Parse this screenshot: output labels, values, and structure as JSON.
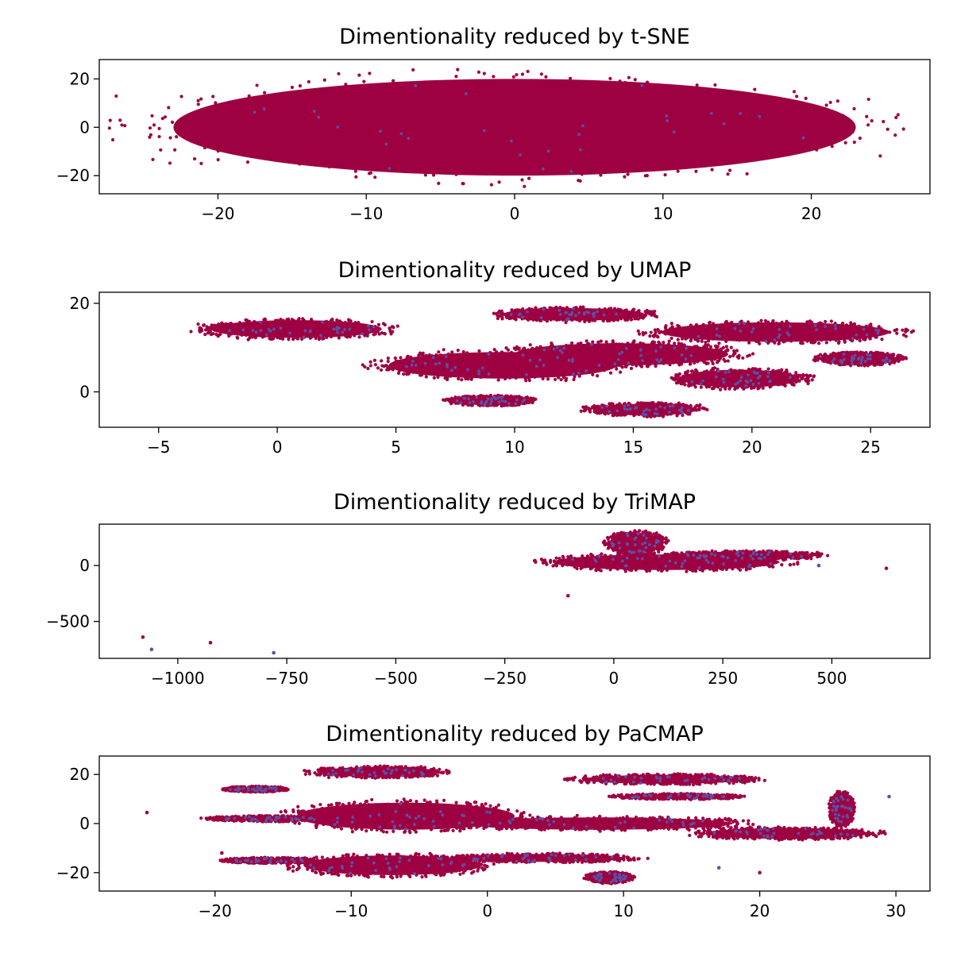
{
  "chart_data": [
    {
      "type": "scatter",
      "title": "Dimentionality reduced by t-SNE",
      "xlabel": "",
      "ylabel": "",
      "xlim": [
        -28,
        28
      ],
      "ylim": [
        -27.5,
        28
      ],
      "xticks": [
        -20,
        -10,
        0,
        10,
        20
      ],
      "yticks": [
        -20,
        0,
        20
      ],
      "xtick_labels": [
        "−20",
        "−10",
        "0",
        "10",
        "20"
      ],
      "ytick_labels": [
        "−20",
        "0",
        "20"
      ],
      "grid": false,
      "colors": {
        "dominant": "#9e0142",
        "minority": "#5e4fa2"
      },
      "shape": {
        "kind": "ellipse",
        "cx": 0,
        "cy": 0,
        "rx": 23,
        "ry": 20
      },
      "seed": 11
    },
    {
      "type": "scatter",
      "title": "Dimentionality reduced by UMAP",
      "xlabel": "",
      "ylabel": "",
      "xlim": [
        -7.5,
        27.5
      ],
      "ylim": [
        -8,
        22.5
      ],
      "xticks": [
        -5,
        0,
        5,
        10,
        15,
        20,
        25
      ],
      "yticks": [
        0,
        20
      ],
      "xtick_labels": [
        "−5",
        "0",
        "5",
        "10",
        "15",
        "20",
        "25"
      ],
      "ytick_labels": [
        "0",
        "20"
      ],
      "grid": false,
      "colors": {
        "dominant": "#9e0142",
        "minority": "#5e4fa2"
      },
      "clusters": [
        {
          "cx": 0.8,
          "cy": 14.2,
          "rx": 3.6,
          "ry": 2.0
        },
        {
          "cx": 9.5,
          "cy": 6.0,
          "rx": 4.8,
          "ry": 3.0
        },
        {
          "cx": 14.5,
          "cy": 8.5,
          "rx": 4.5,
          "ry": 2.5
        },
        {
          "cx": 15.5,
          "cy": -4.0,
          "rx": 2.2,
          "ry": 1.3
        },
        {
          "cx": 21.0,
          "cy": 13.5,
          "rx": 4.8,
          "ry": 2.2
        },
        {
          "cx": 24.5,
          "cy": 7.5,
          "rx": 1.6,
          "ry": 1.3
        },
        {
          "cx": 12.5,
          "cy": 17.5,
          "rx": 3.0,
          "ry": 1.4
        },
        {
          "cx": 19.5,
          "cy": 3.0,
          "rx": 2.5,
          "ry": 2.0
        },
        {
          "cx": 9.0,
          "cy": -2.0,
          "rx": 1.6,
          "ry": 1.0
        }
      ],
      "seed": 23
    },
    {
      "type": "scatter",
      "title": "Dimentionality reduced by TriMAP",
      "xlabel": "",
      "ylabel": "",
      "xlim": [
        -1180,
        725
      ],
      "ylim": [
        -830,
        370
      ],
      "xticks": [
        -1000,
        -750,
        -500,
        -250,
        0,
        250,
        500
      ],
      "yticks": [
        -500,
        0
      ],
      "xtick_labels": [
        "−1000",
        "−750",
        "−500",
        "−250",
        "0",
        "250",
        "500"
      ],
      "ytick_labels": [
        "−500",
        "0"
      ],
      "grid": false,
      "colors": {
        "dominant": "#9e0142",
        "minority": "#5e4fa2"
      },
      "clusters": [
        {
          "cx": 120,
          "cy": 30,
          "rx": 260,
          "ry": 70
        },
        {
          "cx": 300,
          "cy": 90,
          "rx": 160,
          "ry": 35
        },
        {
          "cx": 50,
          "cy": 200,
          "rx": 60,
          "ry": 90
        }
      ],
      "outliers": [
        [
          -1080,
          -640
        ],
        [
          -1060,
          -750
        ],
        [
          -925,
          -690
        ],
        [
          -780,
          -780
        ],
        [
          625,
          -25
        ],
        [
          470,
          0
        ],
        [
          -105,
          -270
        ]
      ],
      "seed": 37
    },
    {
      "type": "scatter",
      "title": "Dimentionality reduced by PaCMAP",
      "xlabel": "",
      "ylabel": "",
      "xlim": [
        -28.5,
        32.5
      ],
      "ylim": [
        -27.5,
        27.5
      ],
      "xticks": [
        -20,
        -10,
        0,
        10,
        20,
        30
      ],
      "yticks": [
        -20,
        0,
        20
      ],
      "xtick_labels": [
        "−20",
        "−10",
        "0",
        "10",
        "20",
        "30"
      ],
      "ytick_labels": [
        "−20",
        "0",
        "20"
      ],
      "grid": false,
      "colors": {
        "dominant": "#9e0142",
        "minority": "#5e4fa2"
      },
      "clusters": [
        {
          "cx": -6,
          "cy": 3,
          "rx": 8,
          "ry": 5.5
        },
        {
          "cx": 8,
          "cy": 0,
          "rx": 10,
          "ry": 2.5
        },
        {
          "cx": 22,
          "cy": -4,
          "rx": 6,
          "ry": 2.2
        },
        {
          "cx": -7,
          "cy": -17,
          "rx": 6.5,
          "ry": 4
        },
        {
          "cx": 4,
          "cy": -14,
          "rx": 6,
          "ry": 1.6
        },
        {
          "cx": -8,
          "cy": 21,
          "rx": 4.5,
          "ry": 2
        },
        {
          "cx": 13,
          "cy": 18,
          "rx": 6,
          "ry": 1.8
        },
        {
          "cx": -17,
          "cy": 14,
          "rx": 2,
          "ry": 1
        },
        {
          "cx": -16,
          "cy": 2,
          "rx": 4,
          "ry": 1
        },
        {
          "cx": 14,
          "cy": 11,
          "rx": 4,
          "ry": 1
        },
        {
          "cx": -16,
          "cy": -15,
          "rx": 3,
          "ry": 1
        },
        {
          "cx": 26,
          "cy": 6,
          "rx": 0.8,
          "ry": 6
        },
        {
          "cx": 9,
          "cy": -22,
          "rx": 1.5,
          "ry": 2
        }
      ],
      "outliers": [
        [
          -25,
          4.5
        ],
        [
          29.5,
          11
        ],
        [
          -19.5,
          -12
        ],
        [
          17,
          -18
        ],
        [
          20,
          -20
        ]
      ],
      "seed": 53
    }
  ]
}
